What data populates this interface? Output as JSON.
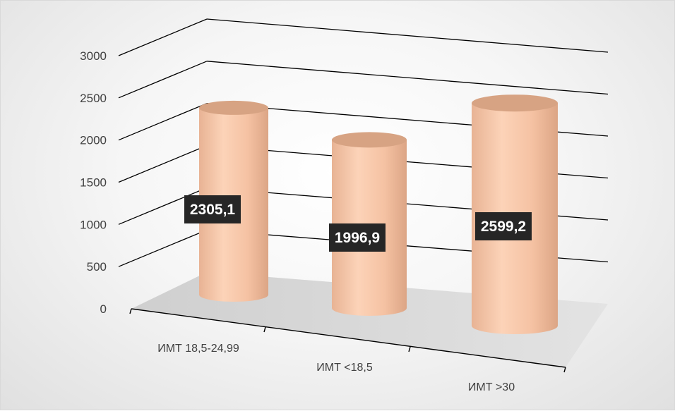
{
  "chart_data": {
    "type": "bar",
    "style": "3d-cylinder",
    "categories": [
      "ИМТ 18,5-24,99",
      "ИМТ <18,5",
      "ИМТ >30"
    ],
    "values": [
      2305.1,
      1996.9,
      2599.2
    ],
    "value_labels": [
      "2305,1",
      "1996,9",
      "2599,2"
    ],
    "y_ticks": [
      "0",
      "500",
      "1000",
      "1500",
      "2000",
      "2500",
      "3000"
    ],
    "ylim": [
      0,
      3000
    ],
    "grid": true,
    "legend": "none",
    "title": "",
    "xlabel": "",
    "ylabel": "",
    "colors": {
      "bar": "#f7c4a5",
      "bar_top": "#d7a383",
      "label_bg": "#262626",
      "gridline": "#000000",
      "floor": "#d4d4d4"
    }
  }
}
